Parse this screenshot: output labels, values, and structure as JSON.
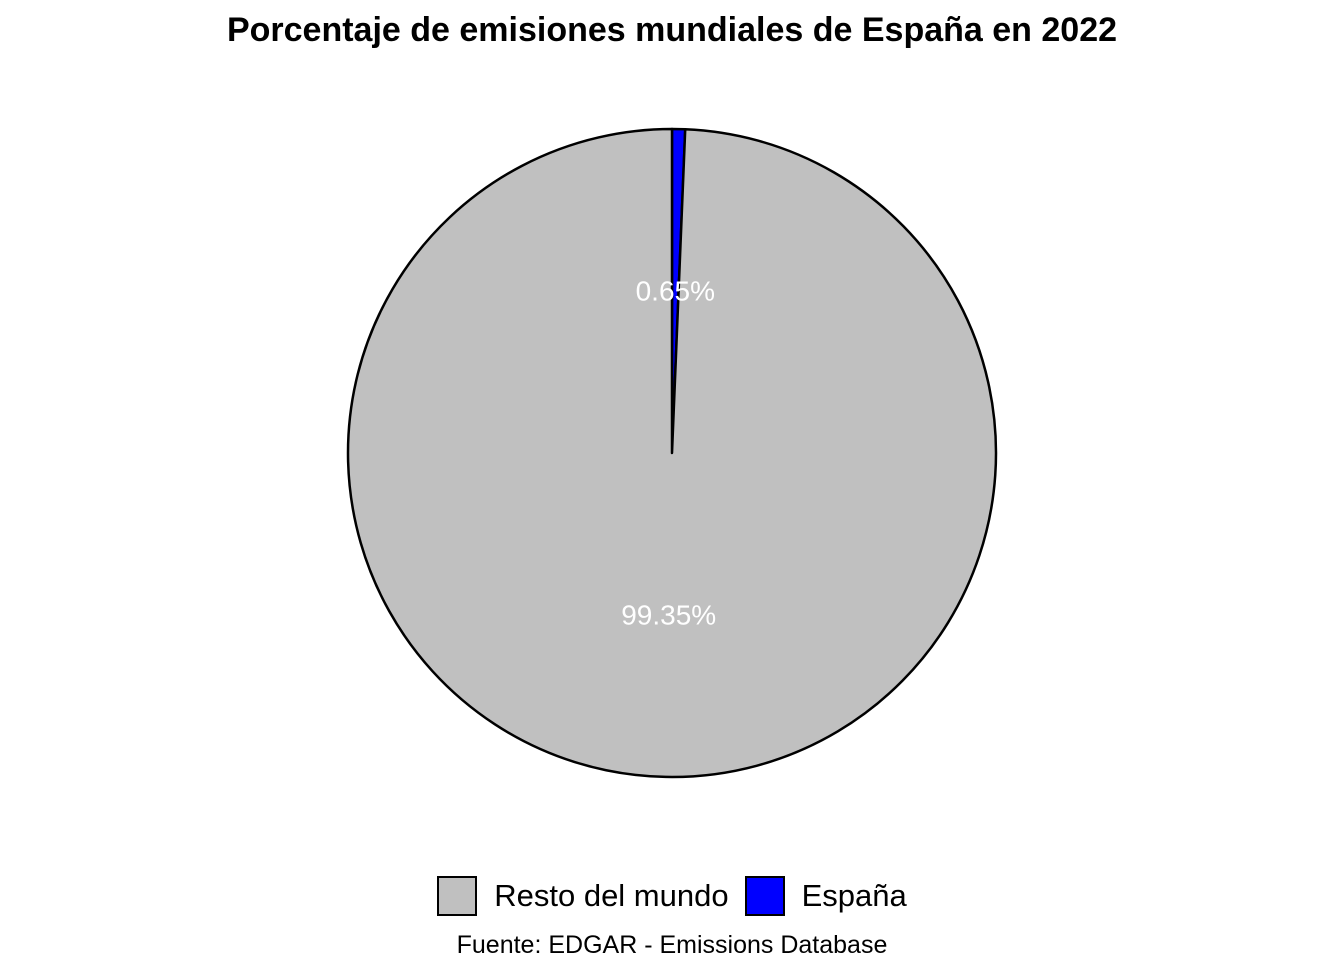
{
  "chart_data": {
    "type": "pie",
    "title": "Porcentaje de emisiones mundiales de España en 2022",
    "categories": [
      "Resto del mundo",
      "España"
    ],
    "values": [
      99.35,
      0.65
    ],
    "labels": [
      "99.35%",
      "0.65%"
    ],
    "colors": [
      "#c0c0c0",
      "#0000ff"
    ],
    "label_color": "#ffffff",
    "legend_position": "bottom",
    "caption": "Fuente: EDGAR - Emissions Database"
  }
}
